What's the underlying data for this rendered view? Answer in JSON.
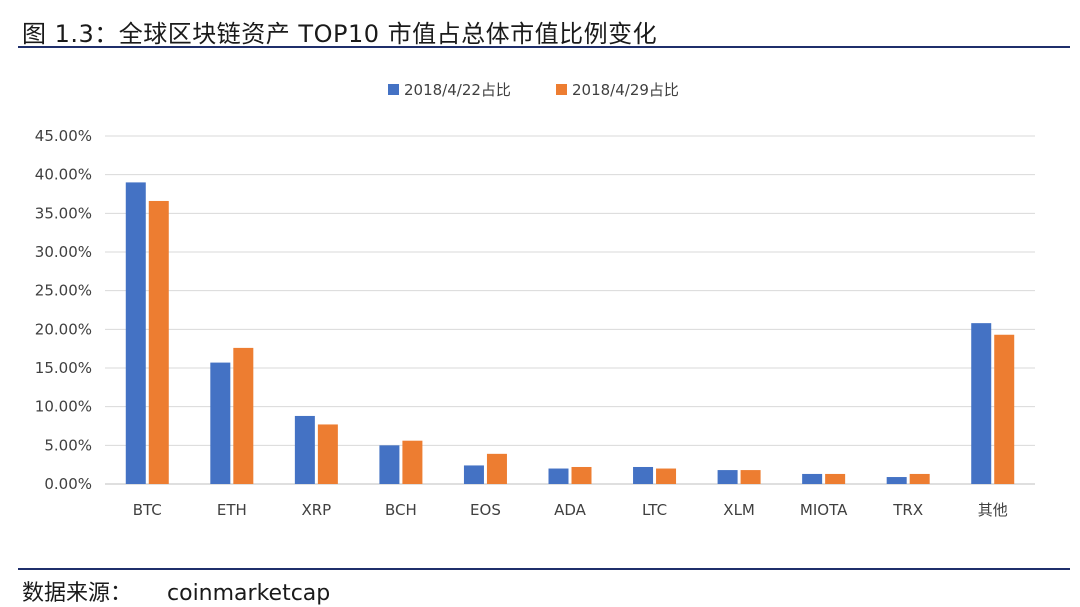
{
  "title": "图 1.3：全球区块链资产 TOP10 市值占总体市值比例变化",
  "source": {
    "label": "数据来源：",
    "value": "coinmarketcap"
  },
  "chart_data": {
    "type": "bar",
    "categories": [
      "BTC",
      "ETH",
      "XRP",
      "BCH",
      "EOS",
      "ADA",
      "LTC",
      "XLM",
      "MIOTA",
      "TRX",
      "其他"
    ],
    "series": [
      {
        "name": "2018/4/22占比",
        "color": "#4472c4",
        "values": [
          39.0,
          15.7,
          8.8,
          5.0,
          2.4,
          2.0,
          2.2,
          1.8,
          1.3,
          0.9,
          20.8
        ]
      },
      {
        "name": "2018/4/29占比",
        "color": "#ed7d31",
        "values": [
          36.6,
          17.6,
          7.7,
          5.6,
          3.9,
          2.2,
          2.0,
          1.8,
          1.3,
          1.3,
          19.3
        ]
      }
    ],
    "y_ticks": [
      "0.00%",
      "5.00%",
      "10.00%",
      "15.00%",
      "20.00%",
      "25.00%",
      "30.00%",
      "35.00%",
      "40.00%",
      "45.00%"
    ],
    "ylim": [
      0,
      45
    ],
    "grid": true,
    "legend_position": "top-center"
  }
}
